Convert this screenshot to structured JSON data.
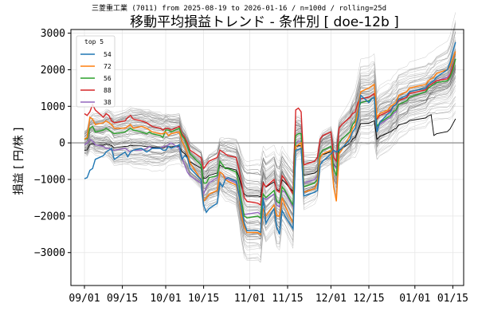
{
  "chart_data": {
    "type": "line",
    "subtitle": "三菱重工業 (7011) from 2025-08-19 to 2026-01-16 / n=100d / rolling=25d",
    "title": "移動平均損益トレンド - 条件別 [ doe-12b ]",
    "xlabel": "",
    "ylabel": "損益 [ 円/株 ]",
    "ylim": [
      -3900,
      3100
    ],
    "yticks": [
      -3000,
      -2000,
      -1000,
      0,
      1000,
      2000,
      3000
    ],
    "xrange": [
      "2025-08-27",
      "2026-01-19"
    ],
    "xticks": [
      {
        "date": "2025-09-01",
        "label": "09/01"
      },
      {
        "date": "2025-09-15",
        "label": "09/15"
      },
      {
        "date": "2025-10-01",
        "label": "10/01"
      },
      {
        "date": "2025-10-15",
        "label": "10/15"
      },
      {
        "date": "2025-11-01",
        "label": "11/01"
      },
      {
        "date": "2025-11-15",
        "label": "11/15"
      },
      {
        "date": "2025-12-01",
        "label": "12/01"
      },
      {
        "date": "2025-12-15",
        "label": "12/15"
      },
      {
        "date": "2026-01-01",
        "label": "01/01"
      },
      {
        "date": "2026-01-15",
        "label": "01/15"
      }
    ],
    "grid": true,
    "zero_line": true,
    "legend": {
      "title": "top 5",
      "placement": "top-left"
    },
    "dates": [
      "2025-09-01",
      "2025-09-02",
      "2025-09-03",
      "2025-09-04",
      "2025-09-05",
      "2025-09-08",
      "2025-09-09",
      "2025-09-10",
      "2025-09-11",
      "2025-09-12",
      "2025-09-16",
      "2025-09-17",
      "2025-09-18",
      "2025-09-19",
      "2025-09-22",
      "2025-09-24",
      "2025-09-25",
      "2025-09-26",
      "2025-09-29",
      "2025-09-30",
      "2025-10-01",
      "2025-10-02",
      "2025-10-03",
      "2025-10-06",
      "2025-10-07",
      "2025-10-08",
      "2025-10-09",
      "2025-10-10",
      "2025-10-14",
      "2025-10-15",
      "2025-10-16",
      "2025-10-17",
      "2025-10-20",
      "2025-10-21",
      "2025-10-22",
      "2025-10-23",
      "2025-10-24",
      "2025-10-27",
      "2025-10-28",
      "2025-10-29",
      "2025-10-30",
      "2025-10-31",
      "2025-11-04",
      "2025-11-05",
      "2025-11-06",
      "2025-11-07",
      "2025-11-10",
      "2025-11-11",
      "2025-11-12",
      "2025-11-13",
      "2025-11-14",
      "2025-11-17",
      "2025-11-18",
      "2025-11-19",
      "2025-11-20",
      "2025-11-21",
      "2025-11-25",
      "2025-11-26",
      "2025-11-27",
      "2025-11-28",
      "2025-12-01",
      "2025-12-02",
      "2025-12-03",
      "2025-12-04",
      "2025-12-05",
      "2025-12-08",
      "2025-12-09",
      "2025-12-10",
      "2025-12-11",
      "2025-12-12",
      "2025-12-15",
      "2025-12-16",
      "2025-12-17",
      "2025-12-18",
      "2025-12-19",
      "2025-12-22",
      "2025-12-23",
      "2025-12-24",
      "2025-12-25",
      "2025-12-26",
      "2025-12-29",
      "2025-12-30",
      "2026-01-05",
      "2026-01-06",
      "2026-01-07",
      "2026-01-08",
      "2026-01-09",
      "2026-01-13",
      "2026-01-14",
      "2026-01-15",
      "2026-01-16"
    ],
    "series": [
      {
        "name": "54",
        "color": "#1f77b4",
        "values": [
          -980,
          -950,
          -750,
          -700,
          -450,
          -350,
          -250,
          -200,
          -150,
          -450,
          -250,
          -380,
          -250,
          -200,
          -150,
          -250,
          -200,
          -150,
          -150,
          -200,
          -200,
          -100,
          -150,
          -50,
          -450,
          -350,
          -400,
          -700,
          -1000,
          -1700,
          -1900,
          -1800,
          -1650,
          -1100,
          -1200,
          -1000,
          -950,
          -1050,
          -1400,
          -1800,
          -2200,
          -2400,
          -2400,
          -2450,
          -1500,
          -2200,
          -1800,
          -2300,
          -2500,
          -1850,
          -2000,
          -2350,
          -200,
          -180,
          -150,
          -1450,
          -1350,
          -1300,
          -600,
          -500,
          -300,
          -200,
          -250,
          -200,
          -150,
          100,
          300,
          400,
          700,
          1300,
          1100,
          1200,
          1250,
          300,
          550,
          800,
          850,
          1000,
          1050,
          1200,
          1300,
          1400,
          1500,
          1600,
          1650,
          1700,
          1800,
          2000,
          2200,
          2500,
          2750
        ]
      },
      {
        "name": "72",
        "color": "#ff7f0e",
        "values": [
          100,
          150,
          700,
          650,
          500,
          550,
          600,
          550,
          500,
          400,
          400,
          450,
          500,
          400,
          450,
          400,
          350,
          300,
          250,
          250,
          300,
          200,
          250,
          300,
          50,
          -100,
          -300,
          -550,
          -1000,
          -1600,
          -1500,
          -1400,
          -1300,
          -800,
          -850,
          -1000,
          -1050,
          -1150,
          -1400,
          -2000,
          -2300,
          -2450,
          -2450,
          -2500,
          -1800,
          -2000,
          -1700,
          -2000,
          -2000,
          -1500,
          -1700,
          -2200,
          -100,
          -50,
          0,
          -1350,
          -1250,
          -1100,
          -400,
          -300,
          -200,
          -1200,
          -1600,
          -300,
          -200,
          200,
          400,
          500,
          900,
          1400,
          1500,
          1550,
          1600,
          700,
          800,
          900,
          1000,
          1050,
          1100,
          1300,
          1400,
          1500,
          1600,
          1700,
          1750,
          1800,
          1900,
          2000,
          2100,
          2300,
          2500
        ]
      },
      {
        "name": "56",
        "color": "#2ca02c",
        "values": [
          100,
          120,
          400,
          450,
          300,
          350,
          400,
          350,
          300,
          250,
          300,
          350,
          400,
          350,
          300,
          250,
          300,
          250,
          200,
          150,
          350,
          350,
          300,
          400,
          200,
          100,
          -100,
          -300,
          -600,
          -1100,
          -1100,
          -950,
          -900,
          -500,
          -600,
          -700,
          -700,
          -800,
          -1100,
          -1600,
          -2000,
          -2050,
          -2000,
          -2050,
          -1400,
          -1500,
          -1300,
          -1600,
          -1650,
          -1200,
          -1300,
          -1700,
          200,
          250,
          250,
          -1200,
          -1100,
          -1000,
          -300,
          -200,
          -100,
          -700,
          -900,
          0,
          100,
          300,
          500,
          600,
          900,
          1100,
          1150,
          1200,
          1250,
          450,
          550,
          700,
          750,
          850,
          900,
          1050,
          1150,
          1250,
          1400,
          1500,
          1550,
          1600,
          1650,
          1700,
          1800,
          2000,
          2300
        ]
      },
      {
        "name": "88",
        "color": "#d62728",
        "values": [
          800,
          750,
          850,
          1050,
          900,
          700,
          800,
          750,
          600,
          550,
          600,
          700,
          750,
          650,
          600,
          550,
          500,
          450,
          400,
          350,
          400,
          400,
          350,
          450,
          250,
          150,
          0,
          -200,
          -400,
          -700,
          -600,
          -500,
          -400,
          -200,
          -250,
          -300,
          -350,
          -400,
          -700,
          -1100,
          -1500,
          -1600,
          -1650,
          -1700,
          -1100,
          -1200,
          -1000,
          -1300,
          -1350,
          -900,
          -1000,
          -1400,
          900,
          950,
          850,
          -600,
          -500,
          -400,
          100,
          200,
          300,
          -400,
          -500,
          400,
          500,
          700,
          800,
          850,
          1100,
          1200,
          1250,
          1300,
          1350,
          650,
          750,
          850,
          900,
          1000,
          1050,
          1150,
          1250,
          1350,
          1450,
          1550,
          1600,
          1650,
          1700,
          1750,
          1850,
          2100,
          2300
        ]
      },
      {
        "name": "38",
        "color": "#9467bd",
        "values": [
          -50,
          0,
          100,
          50,
          -50,
          -100,
          -150,
          -150,
          -200,
          -200,
          -150,
          -200,
          -250,
          -200,
          -200,
          -150,
          -100,
          -150,
          -150,
          -100,
          -100,
          -50,
          0,
          -150,
          -400,
          -600,
          -800,
          -900,
          -1100,
          -1400,
          -1200,
          -1100,
          -950,
          -800,
          -850,
          -950,
          -1000,
          -1100,
          -1400,
          -1800,
          -1950,
          -1950,
          -1900,
          -1950,
          -1500,
          -1550,
          -1400,
          -1700,
          -1750,
          -1300,
          -1350,
          -1750,
          0,
          50,
          50,
          -1100,
          -1000,
          -900,
          -300,
          -200,
          -100,
          -600,
          -700,
          0,
          100,
          300,
          500,
          600,
          900,
          1100,
          1150,
          1200,
          1250,
          400,
          500,
          650,
          700,
          800,
          850,
          1050,
          1150,
          1250,
          1400,
          1500,
          1550,
          1600,
          1700,
          1800,
          1900,
          2100,
          2300
        ]
      }
    ]
  }
}
